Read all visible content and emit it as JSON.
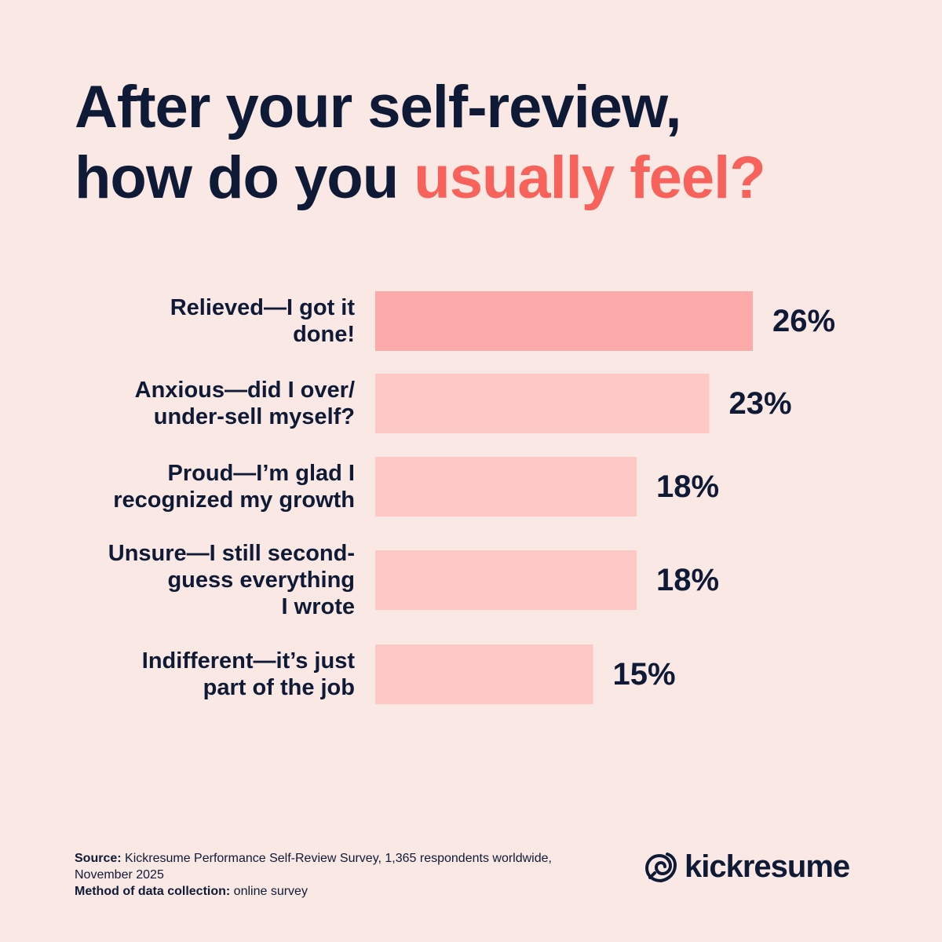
{
  "header": {
    "title_line1": "After your self-review,",
    "title_line2_plain": "how do you ",
    "title_line2_accent": "usually feel?"
  },
  "colors": {
    "background": "#FAE8E4",
    "text": "#0F1A36",
    "accent": "#F7625B",
    "bar_highlight": "#FDAAAA",
    "bar": "#FEC8C4"
  },
  "chart_data": {
    "type": "bar",
    "orientation": "horizontal",
    "categories": [
      "Relieved—I got it done!",
      "Anxious—did I over/ under-sell myself?",
      "Proud—I’m glad I recognized my growth",
      "Unsure—I still second-guess everything I wrote",
      "Indifferent—it’s just part of the job"
    ],
    "category_lines": [
      [
        "Relieved—I got it",
        "done!"
      ],
      [
        "Anxious—did I over/",
        "under-sell myself?"
      ],
      [
        "Proud—I’m glad I",
        "recognized my growth"
      ],
      [
        "Unsure—I still second-",
        "guess everything",
        "I wrote"
      ],
      [
        "Indifferent—it’s just",
        "part of the job"
      ]
    ],
    "values": [
      26,
      23,
      18,
      18,
      15
    ],
    "value_labels": [
      "26%",
      "23%",
      "18%",
      "18%",
      "15%"
    ],
    "unit": "%",
    "highlighted_index": 0,
    "grid": false,
    "legend": "none"
  },
  "footer": {
    "source_label": "Source:",
    "source_text": "Kickresume Performance Self-Review Survey, 1,365 respondents worldwide, November 2025",
    "method_label": "Method of data collection:",
    "method_text": "online survey"
  },
  "logo": {
    "icon": "kickresume-logo-icon",
    "brand": "kickresume"
  }
}
